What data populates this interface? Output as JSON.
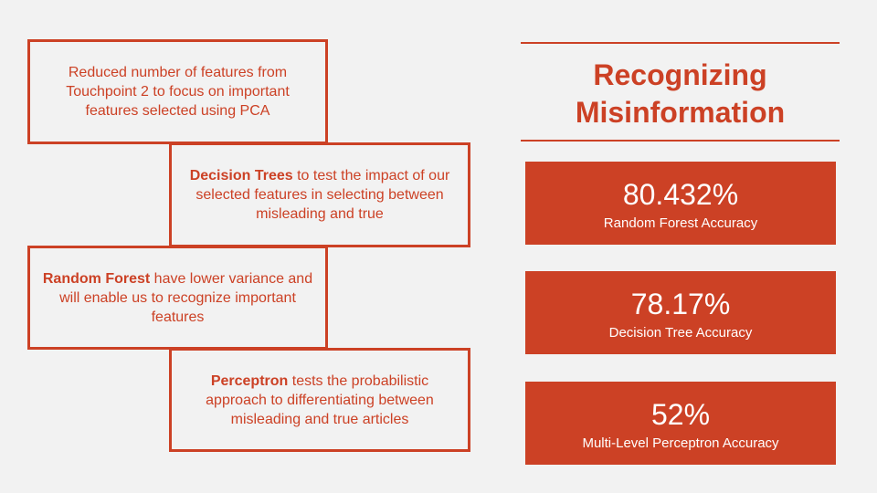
{
  "steps": [
    {
      "bold": "",
      "text": "Reduced number of features from Touchpoint 2 to focus on important features selected using PCA"
    },
    {
      "bold": "Decision Trees",
      "text": " to test the impact of our selected features in selecting between misleading and true"
    },
    {
      "bold": "Random Forest",
      "text": " have lower variance and will enable us to recognize important features"
    },
    {
      "bold": "Perceptron",
      "text": " tests the probabilistic approach to differentiating between misleading and true articles"
    }
  ],
  "title": {
    "line1": "Recognizing",
    "line2": "Misinformation"
  },
  "stats": [
    {
      "value": "80.432%",
      "label": "Random Forest Accuracy"
    },
    {
      "value": "78.17%",
      "label": "Decision Tree Accuracy"
    },
    {
      "value": "52%",
      "label": "Multi-Level Perceptron Accuracy"
    }
  ],
  "colors": {
    "accent": "#cc4125",
    "background": "#f2f2f2",
    "stat_text": "#ffffff"
  }
}
